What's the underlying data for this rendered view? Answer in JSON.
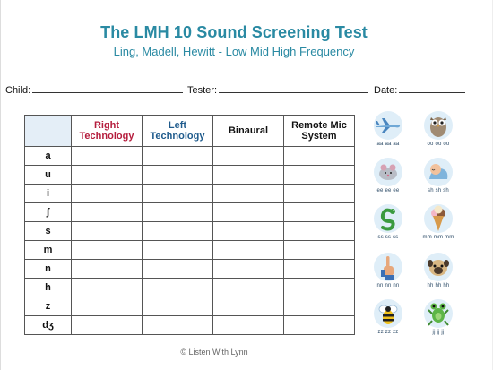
{
  "header": {
    "title": "The LMH 10 Sound Screening Test",
    "subtitle": "Ling, Madell, Hewitt - Low Mid High Frequency"
  },
  "fields": {
    "child_label": "Child:",
    "tester_label": "Tester:",
    "date_label": "Date:"
  },
  "table": {
    "columns": [
      "Right Technology",
      "Left Technology",
      "Binaural",
      "Remote Mic System"
    ],
    "sounds": [
      "a",
      "u",
      "i",
      "ʃ",
      "s",
      "m",
      "n",
      "h",
      "z",
      "dʒ"
    ]
  },
  "pictures": [
    {
      "icon": "airplane-icon",
      "caption": "aa aa aa"
    },
    {
      "icon": "owl-icon",
      "caption": "oo oo oo"
    },
    {
      "icon": "mouse-icon",
      "caption": "ee ee ee"
    },
    {
      "icon": "baby-sleeping-icon",
      "caption": "sh sh sh"
    },
    {
      "icon": "snake-icon",
      "caption": "ss ss ss"
    },
    {
      "icon": "ice-cream-icon",
      "caption": "mm mm mm"
    },
    {
      "icon": "hand-no-icon",
      "caption": "nn nn nn"
    },
    {
      "icon": "pug-dog-icon",
      "caption": "hh hh hh"
    },
    {
      "icon": "bee-icon",
      "caption": "zz zz zz"
    },
    {
      "icon": "frog-icon",
      "caption": "jj jj jj"
    }
  ],
  "footer": {
    "text": "© Listen With Lynn"
  },
  "colors": {
    "title": "#2a8aa3",
    "right_header": "#b51d3d",
    "left_header": "#1f5b8c",
    "corner_fill": "#e4eef7"
  }
}
